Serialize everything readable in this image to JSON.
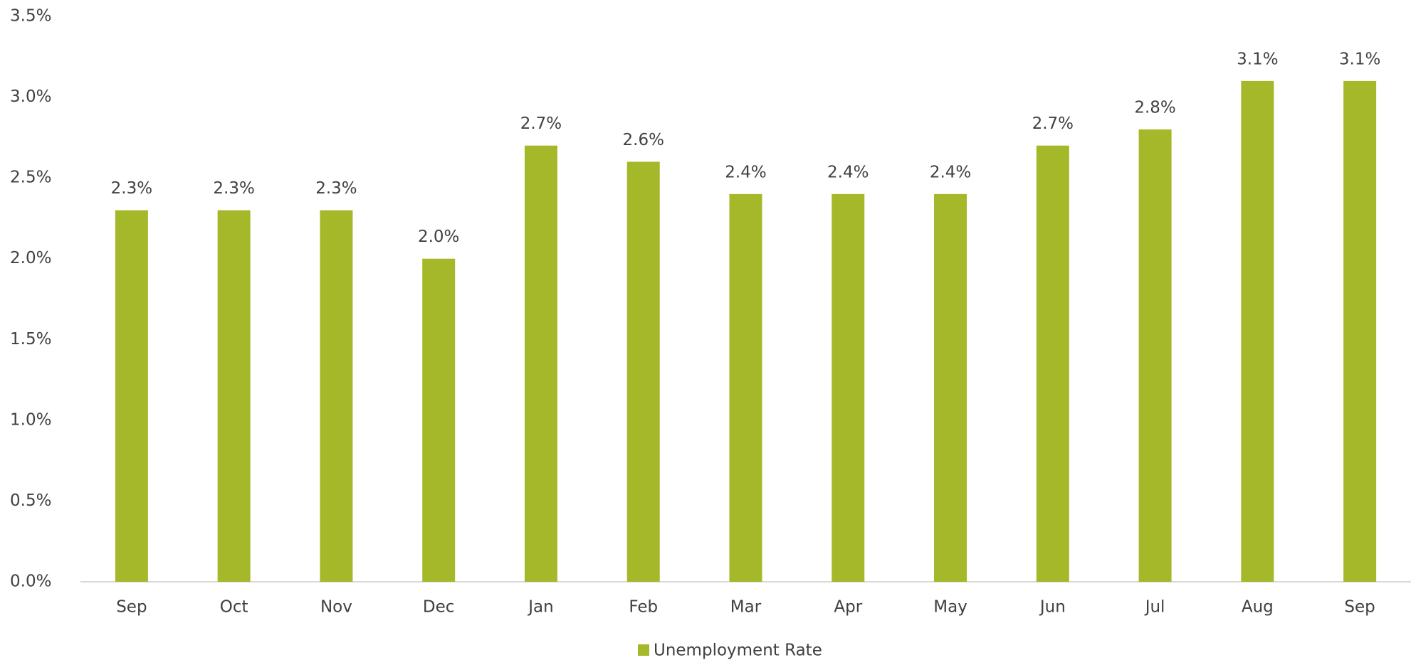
{
  "chart_data": {
    "type": "bar",
    "categories": [
      "Sep",
      "Oct",
      "Nov",
      "Dec",
      "Jan",
      "Feb",
      "Mar",
      "Apr",
      "May",
      "Jun",
      "Jul",
      "Aug",
      "Sep"
    ],
    "series": [
      {
        "name": "Unemployment Rate",
        "color": "#a5b829",
        "values": [
          2.3,
          2.3,
          2.3,
          2.0,
          2.7,
          2.6,
          2.4,
          2.4,
          2.4,
          2.7,
          2.8,
          3.1,
          3.1
        ],
        "value_labels": [
          "2.3%",
          "2.3%",
          "2.3%",
          "2.0%",
          "2.7%",
          "2.6%",
          "2.4%",
          "2.4%",
          "2.4%",
          "2.7%",
          "2.8%",
          "3.1%",
          "3.1%"
        ]
      }
    ],
    "ylim": [
      0,
      3.5
    ],
    "yticks": [
      {
        "value": 0,
        "label": "0.0%"
      },
      {
        "value": 0.5,
        "label": "0.5%"
      },
      {
        "value": 1,
        "label": "1.0%"
      },
      {
        "value": 1.5,
        "label": "1.5%"
      },
      {
        "value": 2,
        "label": "2.0%"
      },
      {
        "value": 2.5,
        "label": "2.5%"
      },
      {
        "value": 3,
        "label": "3.0%"
      },
      {
        "value": 3.5,
        "label": "3.5%"
      }
    ],
    "grid": false,
    "legend": "bottom"
  }
}
